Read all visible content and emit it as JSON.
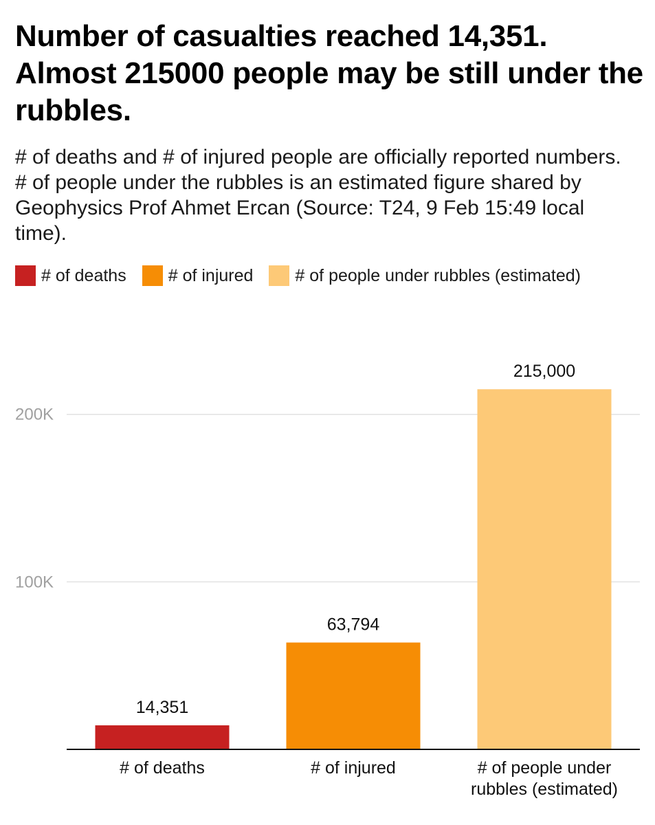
{
  "header": {
    "title": "Number of casualties reached 14,351. Almost 215000 people may be still under the rubbles.",
    "subtitle": "# of deaths and # of injured people are officially reported numbers. # of people under the rubbles is an estimated figure shared by Geophysics Prof Ahmet Ercan (Source: T24, 9 Feb 15:49 local time)."
  },
  "legend": [
    {
      "label": "# of deaths",
      "color": "#c62121"
    },
    {
      "label": "# of injured",
      "color": "#f68d05"
    },
    {
      "label": "# of people under rubbles (estimated)",
      "color": "#fdc977"
    }
  ],
  "chart_data": {
    "type": "bar",
    "title": "Number of casualties reached 14,351. Almost 215000 people may be still under the rubbles.",
    "subtitle": "# of deaths and # of injured people are officially reported numbers. # of people under the rubbles is an estimated figure shared by Geophysics Prof Ahmet Ercan (Source: T24, 9 Feb 15:49 local time).",
    "categories": [
      [
        "# of deaths"
      ],
      [
        "# of injured"
      ],
      [
        "# of people under",
        "rubbles (estimated)"
      ]
    ],
    "values": [
      14351,
      63794,
      215000
    ],
    "value_labels": [
      "14,351",
      "63,794",
      "215,000"
    ],
    "colors": [
      "#c62121",
      "#f68d05",
      "#fdc977"
    ],
    "ylim": [
      0,
      220000
    ],
    "yticks": [
      {
        "value": 100000,
        "label": "100K"
      },
      {
        "value": 200000,
        "label": "200K"
      }
    ],
    "xlabel": "",
    "ylabel": "",
    "grid": true,
    "legend_position": "top"
  }
}
